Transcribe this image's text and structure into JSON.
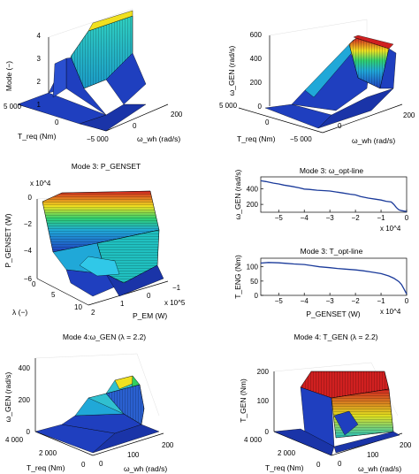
{
  "colors": {
    "surface_low": "#1f3fbf",
    "surface_mid": "#20c0c0",
    "surface_hi_green": "#30d060",
    "surface_hi_yellow": "#f0e020",
    "surface_top": "#d02020",
    "line": "#1a3a9a"
  },
  "chart_data": [
    {
      "id": "top-left",
      "type": "surface3d",
      "title": "",
      "zlabel": "Mode (−)",
      "xlabel": "T_req (Nm)",
      "ylabel": "ω_wh (rad/s)",
      "z_ticks": [
        "1",
        "2",
        "3",
        "4"
      ],
      "x_ticks": [
        "5 000",
        "0",
        "−5 000"
      ],
      "y_ticks": [
        "0",
        "200"
      ],
      "zlim": [
        1,
        4
      ]
    },
    {
      "id": "top-right",
      "type": "surface3d",
      "title": "",
      "zlabel": "ω_GEN (rad/s)",
      "xlabel": "T_req (Nm)",
      "ylabel": "ω_wh (rad/s)",
      "z_ticks": [
        "0",
        "200",
        "400",
        "600"
      ],
      "x_ticks": [
        "5 000",
        "0",
        "−5 000"
      ],
      "y_ticks": [
        "0",
        "200"
      ],
      "zlim": [
        0,
        600
      ]
    },
    {
      "id": "mid-left",
      "type": "surface3d",
      "title": "Mode 3: P_GENSET",
      "zlabel": "P_GENSET (W)",
      "xlabel": "λ (−)",
      "ylabel": "P_EM (W)",
      "z_ticks": [
        "−6",
        "−4",
        "−2",
        "0"
      ],
      "z_exponent": "x 10^4",
      "x_ticks": [
        "10",
        "5",
        "0"
      ],
      "y_ticks": [
        "2",
        "1",
        "0",
        "−1"
      ],
      "y_exponent": "x 10^5"
    },
    {
      "id": "mid-right-1",
      "type": "line",
      "title": "Mode 3: ω_opt-line",
      "ylabel": "ω_GEN (rad/s)",
      "x_ticks": [
        "−5",
        "−4",
        "−3",
        "−2",
        "−1",
        "0"
      ],
      "y_ticks": [
        "200",
        "400"
      ],
      "x_exponent": "x 10^4",
      "xlim": [
        -5.7,
        0
      ],
      "ylim": [
        100,
        550
      ],
      "x": [
        -5.7,
        -5.5,
        -5.2,
        -5.0,
        -4.8,
        -4.5,
        -4.2,
        -4.0,
        -3.8,
        -3.5,
        -3.2,
        -3.0,
        -2.8,
        -2.5,
        -2.2,
        -2.0,
        -1.8,
        -1.5,
        -1.2,
        -1.0,
        -0.8,
        -0.6,
        -0.5,
        -0.4,
        -0.3,
        -0.2,
        -0.1,
        0
      ],
      "y": [
        500,
        490,
        470,
        460,
        445,
        430,
        410,
        395,
        390,
        380,
        375,
        370,
        360,
        345,
        330,
        320,
        300,
        280,
        265,
        255,
        240,
        230,
        200,
        160,
        130,
        120,
        115,
        110
      ]
    },
    {
      "id": "mid-right-2",
      "type": "line",
      "title": "Mode 3: T_opt-line",
      "ylabel": "T_ENG (Nm)",
      "xlabel": "P_GENSET (W)",
      "x_ticks": [
        "−5",
        "−4",
        "−3",
        "−2",
        "−1",
        "0"
      ],
      "y_ticks": [
        "0",
        "50",
        "100"
      ],
      "x_exponent": "x 10^4",
      "xlim": [
        -5.7,
        0
      ],
      "ylim": [
        0,
        130
      ],
      "x": [
        -5.7,
        -5.4,
        -5.0,
        -4.7,
        -4.4,
        -4.0,
        -3.7,
        -3.4,
        -3.0,
        -2.7,
        -2.4,
        -2.0,
        -1.7,
        -1.4,
        -1.0,
        -0.7,
        -0.5,
        -0.3,
        -0.2,
        -0.1,
        0
      ],
      "y": [
        113,
        115,
        114,
        112,
        110,
        108,
        104,
        100,
        97,
        94,
        92,
        89,
        86,
        82,
        76,
        68,
        60,
        48,
        38,
        22,
        5
      ]
    },
    {
      "id": "bottom-left",
      "type": "surface3d",
      "title": "Mode 4:ω_GEN (λ = 2.2)",
      "zlabel": "ω_GEN (rad/s)",
      "xlabel": "T_req (Nm)",
      "ylabel": "ω_wh (rad/s)",
      "z_ticks": [
        "0",
        "200",
        "400"
      ],
      "x_ticks": [
        "4 000",
        "2 000",
        "0"
      ],
      "y_ticks": [
        "0",
        "100",
        "200"
      ]
    },
    {
      "id": "bottom-right",
      "type": "surface3d",
      "title": "Mode 4: T_GEN (λ = 2.2)",
      "zlabel": "T_GEN (Nm)",
      "xlabel": "T_req (Nm)",
      "ylabel": "ω_wh (rad/s)",
      "z_ticks": [
        "0",
        "100",
        "200"
      ],
      "x_ticks": [
        "4 000",
        "2 000",
        "0"
      ],
      "y_ticks": [
        "0",
        "100",
        "200"
      ]
    }
  ]
}
